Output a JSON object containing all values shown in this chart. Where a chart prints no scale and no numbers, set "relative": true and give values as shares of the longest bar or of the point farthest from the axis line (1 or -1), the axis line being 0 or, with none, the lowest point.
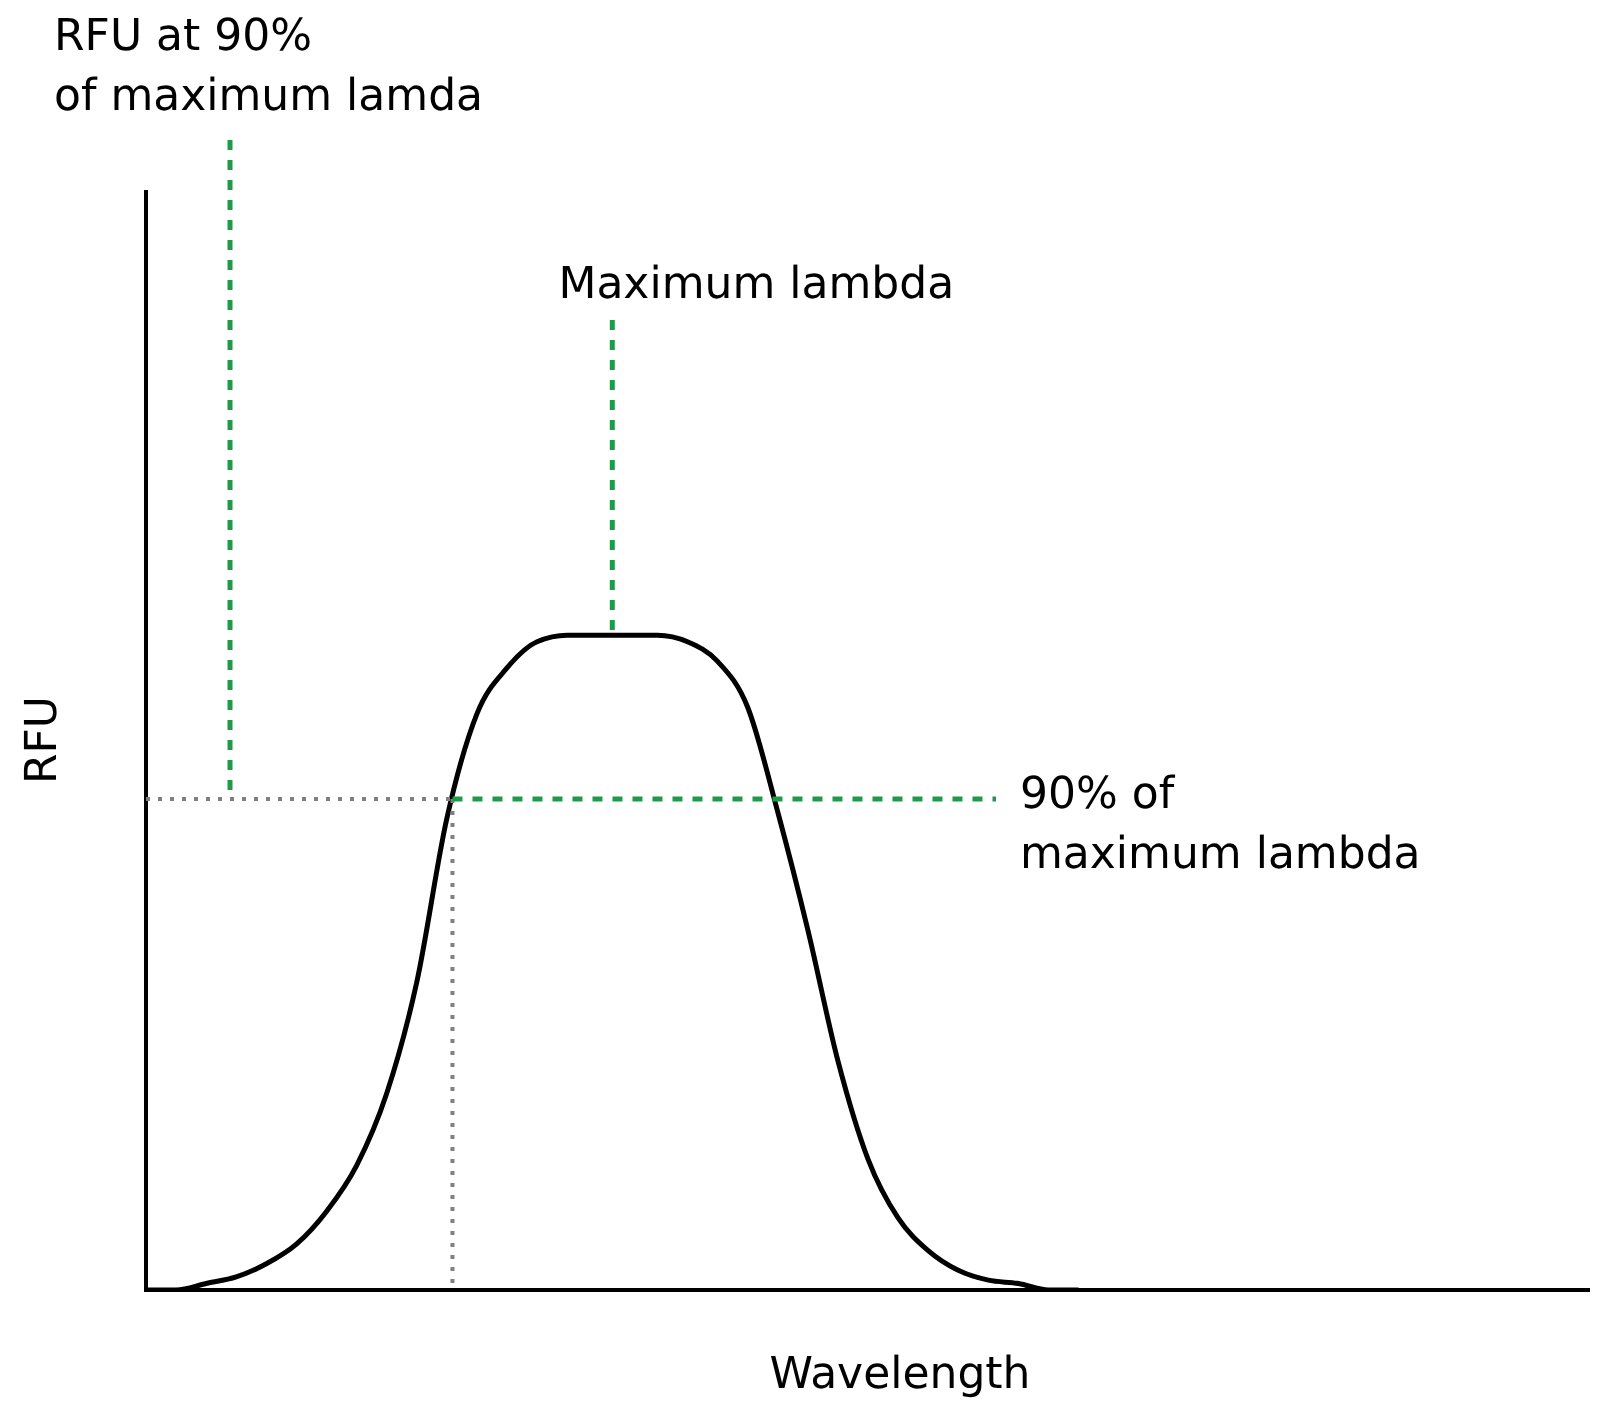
{
  "chart_data": {
    "type": "line",
    "relative": true,
    "xlabel": "Wavelength",
    "ylabel": "RFU",
    "categories": [
      null,
      null,
      null,
      null,
      null,
      null,
      null,
      null,
      null,
      null,
      null,
      null,
      null,
      null,
      null,
      null,
      null,
      null,
      null,
      null,
      null,
      null,
      null,
      null,
      null,
      null,
      null,
      null,
      null,
      null,
      null,
      null,
      null,
      null,
      null,
      null,
      null,
      null,
      null,
      null,
      null,
      null,
      null,
      null,
      null,
      null,
      null,
      null,
      null
    ],
    "series": [
      {
        "color": "#000000",
        "values": [
          0,
          0,
          0.01,
          0.02,
          0.04,
          0.07,
          0.12,
          0.19,
          0.3,
          0.47,
          0.72,
          0.88,
          0.95,
          0.99,
          1,
          1,
          1,
          1,
          0.99,
          0.96,
          0.89,
          0.73,
          0.55,
          0.35,
          0.2,
          0.11,
          0.06,
          0.03,
          0.015,
          0.01,
          0,
          0,
          null,
          null,
          null,
          null,
          null,
          null,
          null,
          null,
          null,
          null,
          null,
          null,
          null,
          null,
          null,
          null,
          null
        ]
      }
    ],
    "ref_lines": [
      {
        "axis": "y",
        "value": 0.75,
        "color": "#808080",
        "line_style": "dotted"
      }
    ],
    "annotations": [
      "RFU at 90%\nof maximum lamda",
      "Maximum lambda",
      "90% of\nmaximum lambda"
    ],
    "marker": "none",
    "line_style": "solid",
    "grid": false
  }
}
